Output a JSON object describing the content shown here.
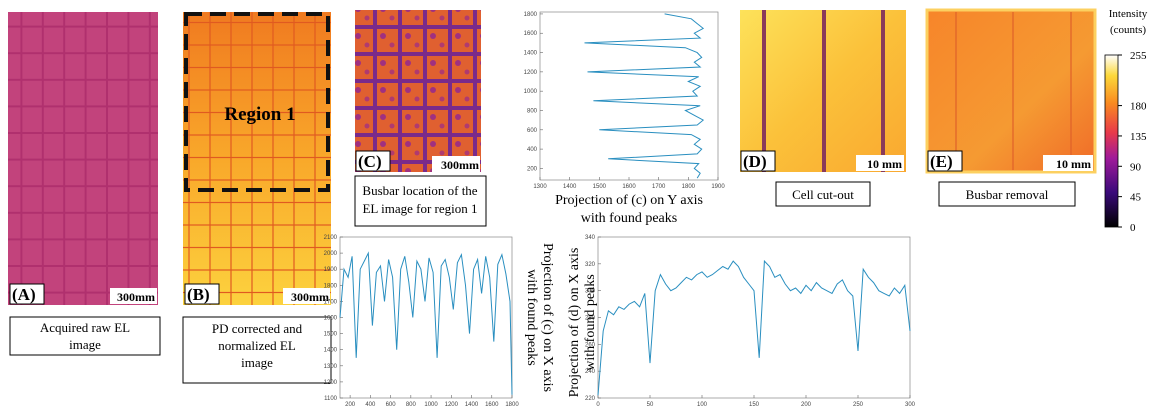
{
  "panels": [
    {
      "letter": "(A)",
      "scale": "300mm",
      "caption": [
        "Acquired raw EL",
        "image"
      ]
    },
    {
      "letter": "(B)",
      "scale": "300mm",
      "caption": [
        "PD corrected and",
        "normalized EL",
        "image"
      ]
    },
    {
      "letter": "(C)",
      "scale": "300mm",
      "caption": [
        "Busbar location of the",
        "EL image for region 1"
      ]
    },
    {
      "letter": "(D)",
      "scale": "10 mm",
      "caption": [
        "Cell cut-out"
      ]
    },
    {
      "letter": "(E)",
      "scale": "10 mm",
      "caption": [
        "Busbar removal"
      ]
    }
  ],
  "region_label": "Region 1",
  "colorbar": {
    "title": [
      "Intensity",
      "(counts)"
    ],
    "lim": [
      0,
      255
    ],
    "ticks": [
      255,
      180,
      135,
      90,
      45,
      0
    ]
  },
  "chart_data": [
    {
      "type": "line",
      "title": [
        "Projection of (c) on Y axis",
        "with found peaks"
      ],
      "color": "#2a8fc0",
      "x": [
        1830,
        1840,
        1820,
        1835,
        1530,
        1830,
        1845,
        1820,
        1840,
        1810,
        1500,
        1830,
        1850,
        1820,
        1790,
        1840,
        1480,
        1830,
        1815,
        1840,
        1800,
        1835,
        1460,
        1840,
        1820,
        1845,
        1830,
        1790,
        1450,
        1840,
        1820,
        1850,
        1830,
        1810,
        1720
      ],
      "values": [
        100,
        150,
        200,
        250,
        300,
        350,
        400,
        450,
        500,
        550,
        600,
        650,
        700,
        750,
        800,
        850,
        900,
        950,
        1000,
        1050,
        1100,
        1150,
        1200,
        1250,
        1300,
        1350,
        1400,
        1450,
        1500,
        1550,
        1600,
        1650,
        1700,
        1750,
        1800
      ],
      "xlim": [
        1300,
        1900
      ],
      "xticks": [
        1300,
        1400,
        1500,
        1600,
        1700,
        1800,
        1900
      ],
      "ylim": [
        80,
        1820
      ],
      "yticks": [
        200,
        400,
        600,
        800,
        1000,
        1200,
        1400,
        1600,
        1800
      ]
    },
    {
      "type": "line",
      "title": [
        "Projection of (c) on X axis",
        "with found peaks"
      ],
      "color": "#2a8fc0",
      "x": [
        100,
        140,
        180,
        220,
        260,
        300,
        340,
        380,
        420,
        460,
        500,
        540,
        580,
        620,
        660,
        700,
        740,
        780,
        820,
        860,
        900,
        940,
        980,
        1020,
        1060,
        1100,
        1140,
        1180,
        1220,
        1260,
        1300,
        1340,
        1380,
        1420,
        1460,
        1500,
        1540,
        1580,
        1620,
        1660,
        1700,
        1740,
        1780,
        1800
      ],
      "values": [
        1600,
        1900,
        1850,
        1980,
        1350,
        1900,
        1950,
        2000,
        1550,
        1880,
        1920,
        1700,
        1960,
        1850,
        1400,
        1900,
        1980,
        1820,
        1600,
        1950,
        1900,
        1700,
        1970,
        1880,
        1350,
        1920,
        1960,
        1850,
        1650,
        1940,
        1990,
        1800,
        1500,
        1900,
        1960,
        1750,
        1980,
        1850,
        1450,
        1930,
        1990,
        1870,
        1700,
        1120
      ],
      "xlim": [
        100,
        1800
      ],
      "xticks": [
        200,
        400,
        600,
        800,
        1000,
        1200,
        1400,
        1600,
        1800
      ],
      "ylim": [
        1100,
        2100
      ],
      "yticks": [
        1100,
        1200,
        1300,
        1400,
        1500,
        1600,
        1700,
        1800,
        1900,
        2000,
        2100
      ]
    },
    {
      "type": "line",
      "title": [
        "Projection of (d) on X axis",
        "with found peaks"
      ],
      "color": "#2a8fc0",
      "x": [
        0,
        5,
        10,
        15,
        20,
        25,
        30,
        35,
        40,
        45,
        50,
        55,
        60,
        65,
        70,
        75,
        80,
        85,
        90,
        95,
        100,
        105,
        110,
        115,
        120,
        125,
        130,
        135,
        140,
        145,
        150,
        155,
        160,
        165,
        170,
        175,
        180,
        185,
        190,
        195,
        200,
        205,
        210,
        215,
        220,
        225,
        230,
        235,
        240,
        245,
        250,
        255,
        260,
        265,
        270,
        275,
        280,
        285,
        290,
        295,
        300
      ],
      "values": [
        222,
        270,
        285,
        282,
        288,
        286,
        290,
        292,
        288,
        298,
        246,
        300,
        312,
        305,
        300,
        302,
        306,
        310,
        308,
        312,
        314,
        310,
        312,
        315,
        318,
        316,
        322,
        318,
        310,
        305,
        300,
        250,
        322,
        318,
        310,
        312,
        305,
        300,
        302,
        298,
        304,
        300,
        306,
        302,
        300,
        298,
        305,
        308,
        300,
        296,
        255,
        316,
        310,
        306,
        300,
        298,
        296,
        302,
        298,
        304,
        270
      ],
      "xlim": [
        0,
        300
      ],
      "xticks": [
        0,
        50,
        100,
        150,
        200,
        250,
        300
      ],
      "ylim": [
        220,
        340
      ],
      "yticks": [
        220,
        240,
        260,
        280,
        300,
        320,
        340
      ]
    }
  ]
}
